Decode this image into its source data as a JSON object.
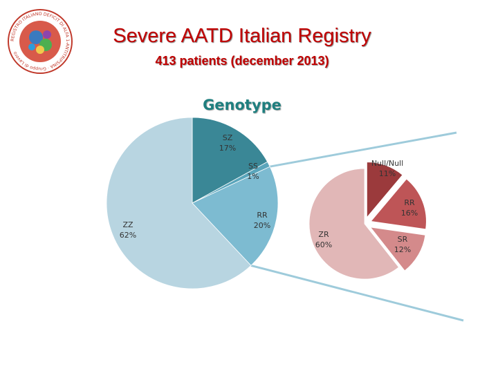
{
  "header": {
    "title": "Severe AATD Italian Registry",
    "subtitle": "413 patients (december 2013)"
  },
  "logo": {
    "icon": "registry-seal-logo",
    "text": "REGISTRO ITALIANO DEFICIT DI ALFA 1-ANTITRIPSINA · Gruppo di Lavoro"
  },
  "chart_data": [
    {
      "type": "pie",
      "title": "Genotype",
      "labels": [
        "SZ",
        "SS",
        "RR",
        "ZZ"
      ],
      "values": [
        17,
        1,
        20,
        62
      ],
      "unit": "%",
      "colors": [
        "#3a8796",
        "#5aa5bb",
        "#7dbbd1",
        "#b8d5e1"
      ]
    },
    {
      "type": "pie",
      "title": "",
      "labels": [
        "Null/Null",
        "RR",
        "SR",
        "ZR"
      ],
      "values": [
        11,
        16,
        12,
        60
      ],
      "unit": "%",
      "colors": [
        "#9b3a3c",
        "#be5557",
        "#d48a8b",
        "#e1b7b7"
      ]
    }
  ]
}
